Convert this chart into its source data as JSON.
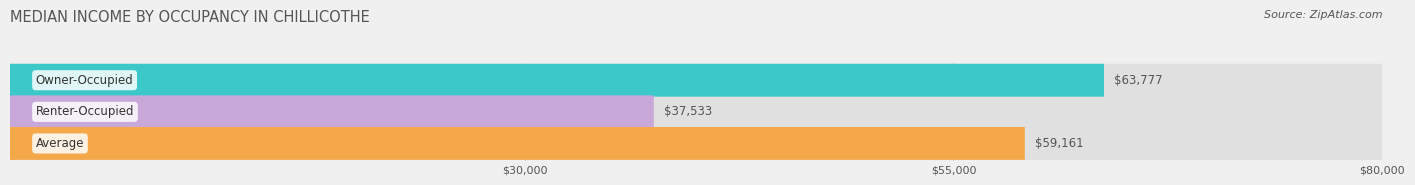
{
  "title": "MEDIAN INCOME BY OCCUPANCY IN CHILLICOTHE",
  "source": "Source: ZipAtlas.com",
  "categories": [
    "Owner-Occupied",
    "Renter-Occupied",
    "Average"
  ],
  "values": [
    63777,
    37533,
    59161
  ],
  "bar_colors": [
    "#3cc8c8",
    "#c8a8d8",
    "#f5a84a"
  ],
  "value_labels": [
    "$63,777",
    "$37,533",
    "$59,161"
  ],
  "xmin": 0,
  "xmax": 80000,
  "xticks": [
    30000,
    55000,
    80000
  ],
  "xtick_labels": [
    "$30,000",
    "$55,000",
    "$80,000"
  ],
  "bar_height": 0.52,
  "background_color": "#f0f0f0",
  "bar_bg_color": "#e0e0e0",
  "title_fontsize": 10.5,
  "source_fontsize": 8,
  "label_fontsize": 8.5,
  "value_fontsize": 8.5,
  "tick_fontsize": 8,
  "grid_color": "#cccccc",
  "text_color": "#555555"
}
